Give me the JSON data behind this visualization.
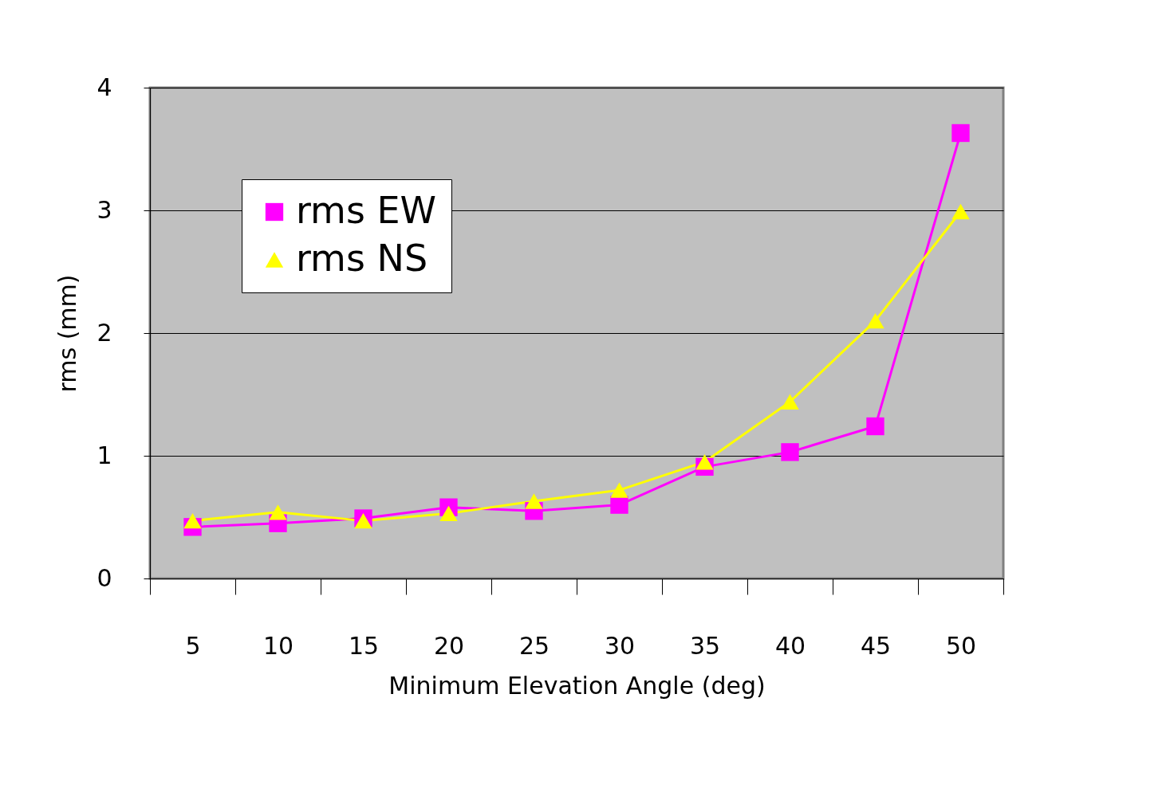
{
  "chart_data": {
    "type": "line",
    "xlabel": "Minimum Elevation Angle (deg)",
    "ylabel": "rms (mm)",
    "categories": [
      "5",
      "10",
      "15",
      "20",
      "25",
      "30",
      "35",
      "40",
      "45",
      "50"
    ],
    "series": [
      {
        "name": "rms EW",
        "color": "#ff00ff",
        "marker": "square",
        "values": [
          0.42,
          0.45,
          0.49,
          0.58,
          0.55,
          0.6,
          0.91,
          1.03,
          1.24,
          3.63
        ]
      },
      {
        "name": "rms NS",
        "color": "#ffff00",
        "marker": "triangle",
        "values": [
          0.47,
          0.54,
          0.47,
          0.53,
          0.63,
          0.72,
          0.95,
          1.44,
          2.1,
          2.99
        ]
      }
    ],
    "ylim": [
      0,
      4
    ],
    "yticks": [
      0,
      1,
      2,
      3,
      4
    ],
    "grid": "y",
    "legend": "top left",
    "line_style": "solid"
  }
}
